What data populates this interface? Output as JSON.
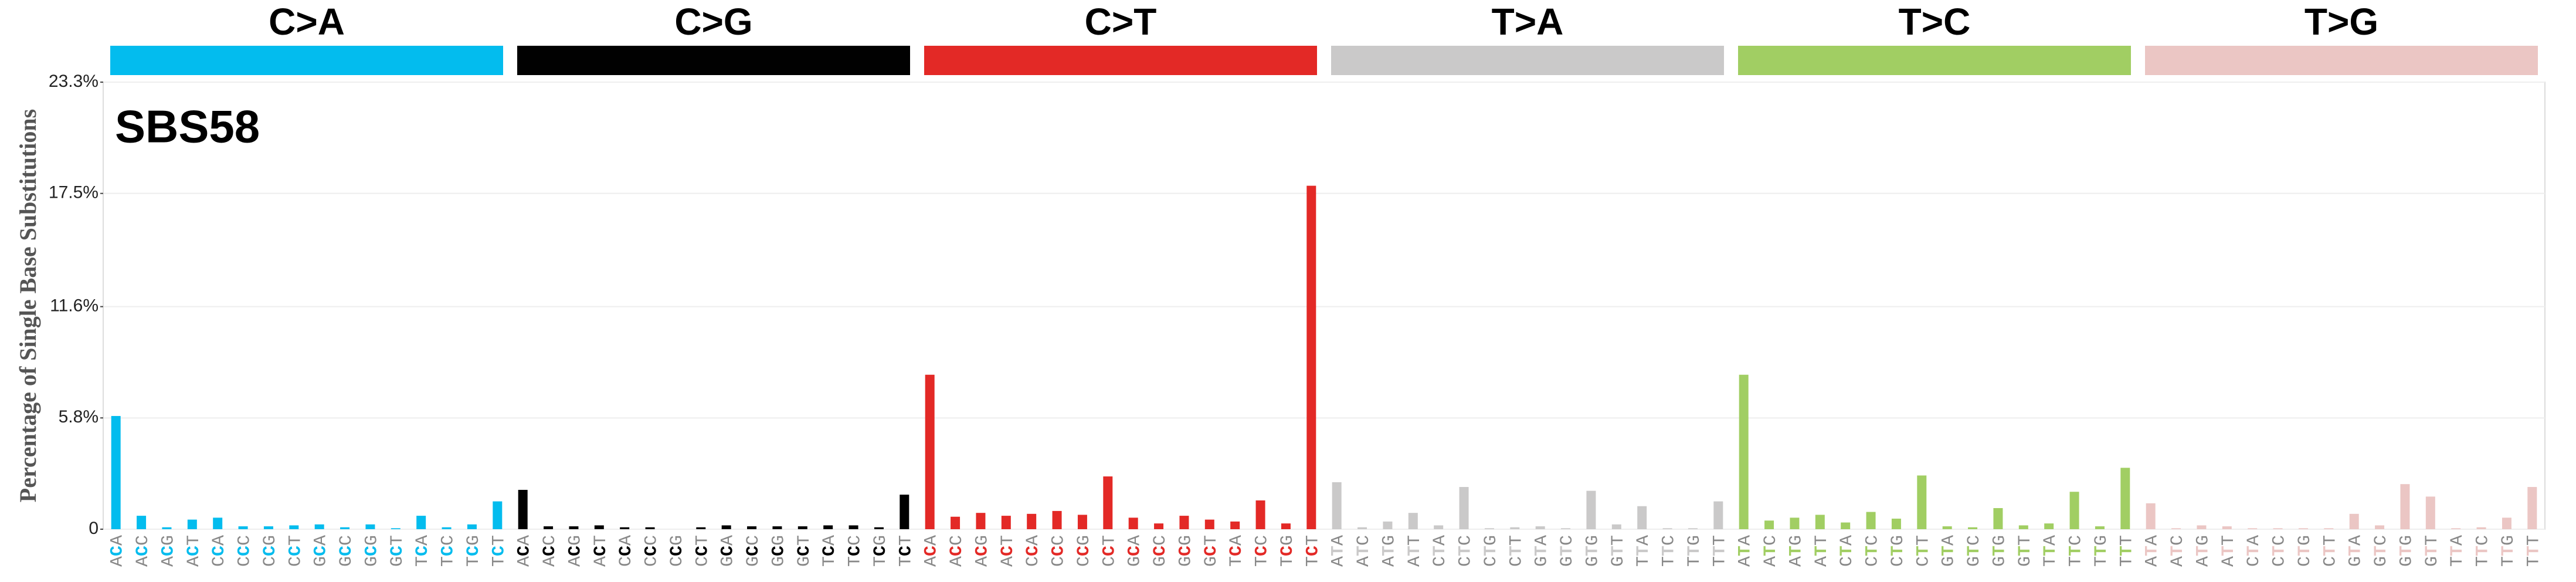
{
  "chart_data": {
    "type": "bar",
    "title": "SBS58",
    "y_label": "Percentage of Single Base Substitutions",
    "groups": [
      {
        "name": "C>A",
        "color": "#03bcee"
      },
      {
        "name": "C>G",
        "color": "#010101"
      },
      {
        "name": "C>T",
        "color": "#e32926"
      },
      {
        "name": "T>A",
        "color": "#cac9c9"
      },
      {
        "name": "T>C",
        "color": "#a1ce63"
      },
      {
        "name": "T>G",
        "color": "#ebc6c4"
      }
    ],
    "categories": [
      "ACA",
      "ACC",
      "ACG",
      "ACT",
      "CCA",
      "CCC",
      "CCG",
      "CCT",
      "GCA",
      "GCC",
      "GCG",
      "GCT",
      "TCA",
      "TCC",
      "TCG",
      "TCT",
      "ACA",
      "ACC",
      "ACG",
      "ACT",
      "CCA",
      "CCC",
      "CCG",
      "CCT",
      "GCA",
      "GCC",
      "GCG",
      "GCT",
      "TCA",
      "TCC",
      "TCG",
      "TCT",
      "ACA",
      "ACC",
      "ACG",
      "ACT",
      "CCA",
      "CCC",
      "CCG",
      "CCT",
      "GCA",
      "GCC",
      "GCG",
      "GCT",
      "TCA",
      "TCC",
      "TCG",
      "TCT",
      "ATA",
      "ATC",
      "ATG",
      "ATT",
      "CTA",
      "CTC",
      "CTG",
      "CTT",
      "GTA",
      "GTC",
      "GTG",
      "GTT",
      "TTA",
      "TTC",
      "TTG",
      "TTT",
      "ATA",
      "ATC",
      "ATG",
      "ATT",
      "CTA",
      "CTC",
      "CTG",
      "CTT",
      "GTA",
      "GTC",
      "GTG",
      "GTT",
      "TTA",
      "TTC",
      "TTG",
      "TTT",
      "ATA",
      "ATC",
      "ATG",
      "ATT",
      "CTA",
      "CTC",
      "CTG",
      "CTT",
      "GTA",
      "GTC",
      "GTG",
      "GTT",
      "TTA",
      "TTC",
      "TTG",
      "TTT"
    ],
    "values": [
      5.9,
      0.7,
      0.1,
      0.5,
      0.6,
      0.15,
      0.15,
      0.2,
      0.25,
      0.1,
      0.25,
      0.05,
      0.7,
      0.1,
      0.25,
      1.45,
      2.05,
      0.15,
      0.15,
      0.2,
      0.1,
      0.1,
      0.0,
      0.1,
      0.2,
      0.15,
      0.15,
      0.15,
      0.2,
      0.2,
      0.1,
      1.8,
      8.05,
      0.65,
      0.85,
      0.7,
      0.8,
      0.95,
      0.75,
      2.75,
      0.6,
      0.3,
      0.7,
      0.5,
      0.4,
      1.5,
      0.3,
      17.9,
      2.45,
      0.1,
      0.4,
      0.85,
      0.2,
      2.2,
      0.05,
      0.1,
      0.15,
      0.05,
      2.0,
      0.25,
      1.2,
      0.05,
      0.05,
      1.45,
      8.05,
      0.45,
      0.6,
      0.75,
      0.35,
      0.9,
      0.55,
      2.8,
      0.15,
      0.1,
      1.1,
      0.2,
      0.3,
      1.95,
      0.15,
      3.2,
      1.35,
      0.05,
      0.2,
      0.15,
      0.05,
      0.05,
      0.05,
      0.05,
      0.8,
      0.2,
      2.35,
      1.7,
      0.05,
      0.1,
      0.6,
      2.2
    ],
    "ylim": [
      0,
      23.3
    ],
    "yticks": [
      {
        "value": 0,
        "label": "0"
      },
      {
        "value": 5.8,
        "label": "5.8%"
      },
      {
        "value": 11.6,
        "label": "11.6%"
      },
      {
        "value": 17.5,
        "label": "17.5%"
      },
      {
        "value": 23.3,
        "label": "23.3%"
      }
    ],
    "grid": true
  }
}
